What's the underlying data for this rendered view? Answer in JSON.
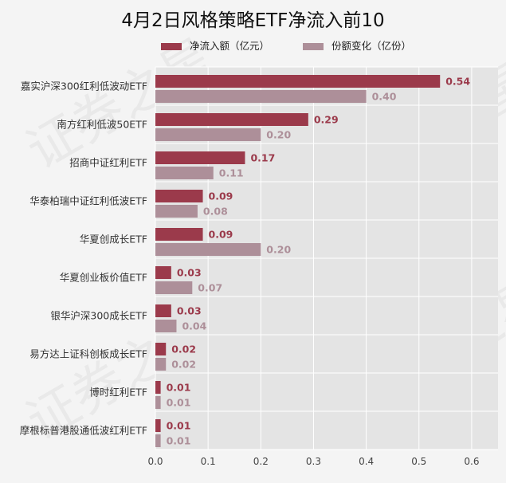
{
  "title": "4月2日风格策略ETF净流入前10",
  "watermark": "证券之星",
  "colors": {
    "net_inflow": "#9b3a4b",
    "share_change": "#ad8f99",
    "plot_bg": "#e4e4e4",
    "grid": "#ffffff"
  },
  "chart_data": {
    "type": "bar",
    "orientation": "horizontal",
    "categories": [
      "嘉实沪深300红利低波动ETF",
      "南方红利低波50ETF",
      "招商中证红利ETF",
      "华泰柏瑞中证红利低波ETF",
      "华夏创成长ETF",
      "华夏创业板价值ETF",
      "银华沪深300成长ETF",
      "易方达上证科创板成长ETF",
      "博时红利ETF",
      "摩根标普港股通低波红利ETF"
    ],
    "series": [
      {
        "name": "净流入额（亿元）",
        "values": [
          0.54,
          0.29,
          0.17,
          0.09,
          0.09,
          0.03,
          0.03,
          0.02,
          0.01,
          0.01
        ],
        "labels": [
          "0.54",
          "0.29",
          "0.17",
          "0.09",
          "0.09",
          "0.03",
          "0.03",
          "0.02",
          "0.01",
          "0.01"
        ]
      },
      {
        "name": "份额变化（亿份）",
        "values": [
          0.4,
          0.2,
          0.11,
          0.08,
          0.2,
          0.07,
          0.04,
          0.02,
          0.01,
          0.01
        ],
        "labels": [
          "0.40",
          "0.20",
          "0.11",
          "0.08",
          "0.20",
          "0.07",
          "0.04",
          "0.02",
          "0.01",
          "0.01"
        ]
      }
    ],
    "xlim": [
      0,
      0.65
    ],
    "xticks": [
      "0.0",
      "0.1",
      "0.2",
      "0.3",
      "0.4",
      "0.5",
      "0.6"
    ],
    "xtick_values": [
      0,
      0.1,
      0.2,
      0.3,
      0.4,
      0.5,
      0.6
    ],
    "grid": true,
    "legend": "top-center"
  }
}
